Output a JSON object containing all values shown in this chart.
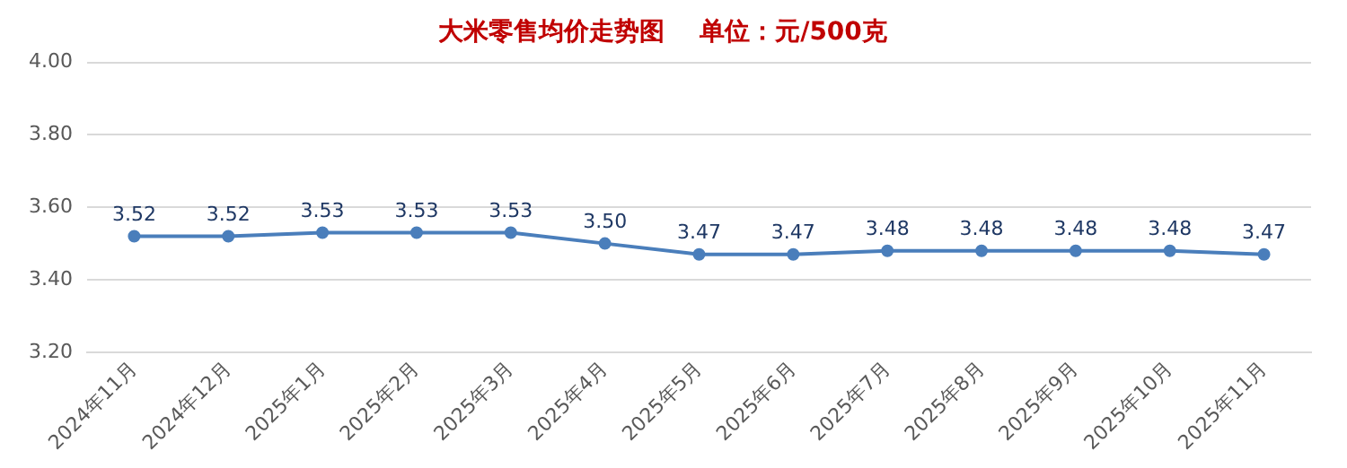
{
  "chart_data": {
    "type": "line",
    "title": "大米零售均价走势图    单位：元/500克",
    "categories": [
      "2024年11月",
      "2024年12月",
      "2025年1月",
      "2025年2月",
      "2025年3月",
      "2025年4月",
      "2025年5月",
      "2025年6月",
      "2025年7月",
      "2025年8月",
      "2025年9月",
      "2025年10月",
      "2025年11月"
    ],
    "series": [
      {
        "color": "#4a7ebb",
        "values": [
          3.52,
          3.52,
          3.53,
          3.53,
          3.53,
          3.5,
          3.47,
          3.47,
          3.48,
          3.48,
          3.48,
          3.48,
          3.47
        ],
        "value_labels": [
          "3.52",
          "3.52",
          "3.53",
          "3.53",
          "3.53",
          "3.50",
          "3.47",
          "3.47",
          "3.48",
          "3.48",
          "3.48",
          "3.48",
          "3.47"
        ]
      }
    ],
    "ylim": [
      3.2,
      4.0
    ],
    "yticks": [
      {
        "value": 3.2,
        "label": "3.20"
      },
      {
        "value": 3.4,
        "label": "3.40"
      },
      {
        "value": 3.6,
        "label": "3.60"
      },
      {
        "value": 3.8,
        "label": "3.80"
      },
      {
        "value": 4.0,
        "label": "4.00"
      }
    ],
    "grid": "y",
    "legend": false,
    "marker": "circle",
    "line_style": "solid"
  }
}
